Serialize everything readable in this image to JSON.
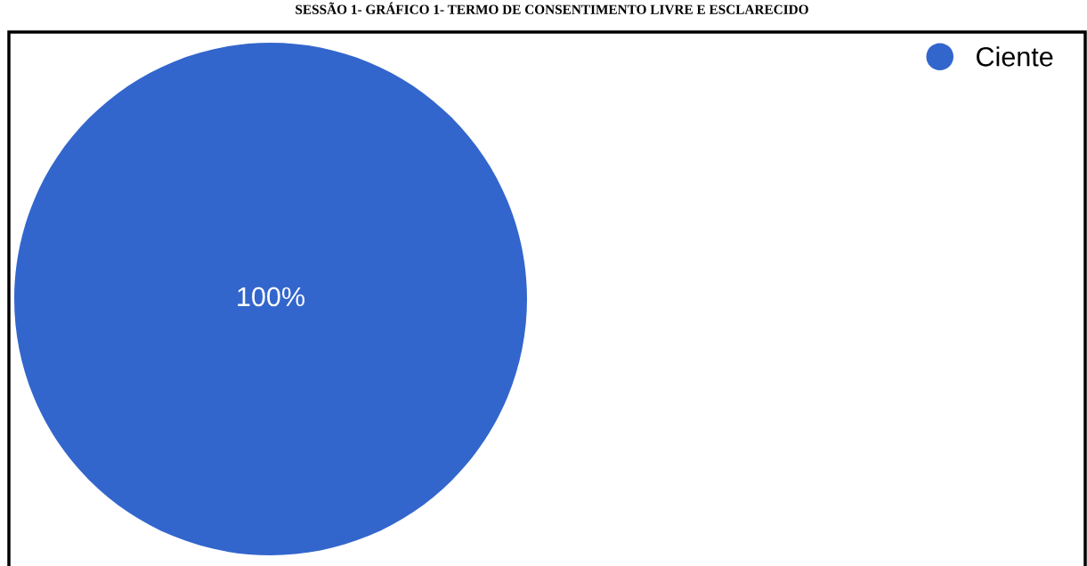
{
  "chart_data": {
    "type": "pie",
    "title": "SESSÃO 1- GRÁFICO 1- TERMO DE CONSENTIMENTO LIVRE E ESCLARECIDO",
    "categories": [
      "Ciente"
    ],
    "values": [
      100
    ],
    "colors": [
      "#3366cc"
    ],
    "value_labels": [
      "100%"
    ],
    "legend": "top right"
  }
}
